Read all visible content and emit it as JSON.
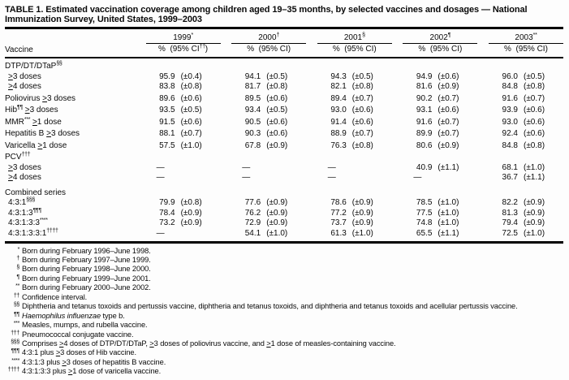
{
  "page": {
    "title_line1": "TABLE 1. Estimated vaccination coverage among children aged 19–35 months, by selected vaccines and dosages — National",
    "title_line2": "Immunization Survey, United States, 1999–2003"
  },
  "header": {
    "vaccine_label": "Vaccine",
    "pct_label": "%",
    "columns": [
      {
        "year": "1999",
        "year_sup": "*",
        "ci_pre": "(95% CI",
        "ci_sup": "††",
        "ci_close": ")"
      },
      {
        "year": "2000",
        "year_sup": "†",
        "ci_pre": "(95% CI",
        "ci_sup": "",
        "ci_close": ")"
      },
      {
        "year": "2001",
        "year_sup": "§",
        "ci_pre": "(95% CI",
        "ci_sup": "",
        "ci_close": ")"
      },
      {
        "year": "2002",
        "year_sup": "¶",
        "ci_pre": "(95% CI",
        "ci_sup": "",
        "ci_close": ")"
      },
      {
        "year": "2003",
        "year_sup": "**",
        "ci_pre": "(95% CI",
        "ci_sup": "",
        "ci_close": ")"
      }
    ]
  },
  "body": {
    "dash": "—",
    "rows": [
      {
        "type": "section",
        "pre": "DTP/DT/DTaP",
        "sup": "§§",
        "post": "",
        "gap": 0,
        "indent": false,
        "cells": null
      },
      {
        "type": "data",
        "pre": "≥3 doses",
        "sup": "",
        "post": "",
        "gap": 0,
        "indent": true,
        "cells": [
          [
            "95.9",
            "(±0.4)"
          ],
          [
            "94.1",
            "(±0.5)"
          ],
          [
            "94.3",
            "(±0.5)"
          ],
          [
            "94.9",
            "(±0.6)"
          ],
          [
            "96.0",
            "(±0.5)"
          ]
        ]
      },
      {
        "type": "data",
        "pre": "≥4 doses",
        "sup": "",
        "post": "",
        "gap": 0,
        "indent": true,
        "cells": [
          [
            "83.8",
            "(±0.8)"
          ],
          [
            "81.7",
            "(±0.8)"
          ],
          [
            "82.1",
            "(±0.8)"
          ],
          [
            "81.6",
            "(±0.9)"
          ],
          [
            "84.8",
            "(±0.8)"
          ]
        ]
      },
      {
        "type": "data",
        "pre": "Poliovirus ≥3 doses",
        "sup": "",
        "post": "",
        "gap": 1,
        "indent": false,
        "cells": [
          [
            "89.6",
            "(±0.6)"
          ],
          [
            "89.5",
            "(±0.6)"
          ],
          [
            "89.4",
            "(±0.7)"
          ],
          [
            "90.2",
            "(±0.7)"
          ],
          [
            "91.6",
            "(±0.7)"
          ]
        ]
      },
      {
        "type": "data",
        "pre": "Hib",
        "sup": "¶¶",
        "post": " ≥3 doses",
        "gap": 1,
        "indent": false,
        "cells": [
          [
            "93.5",
            "(±0.5)"
          ],
          [
            "93.4",
            "(±0.5)"
          ],
          [
            "93.0",
            "(±0.6)"
          ],
          [
            "93.1",
            "(±0.6)"
          ],
          [
            "93.9",
            "(±0.6)"
          ]
        ]
      },
      {
        "type": "data",
        "pre": "MMR",
        "sup": "***",
        "post": " ≥1 dose",
        "gap": 1,
        "indent": false,
        "cells": [
          [
            "91.5",
            "(±0.6)"
          ],
          [
            "90.5",
            "(±0.6)"
          ],
          [
            "91.4",
            "(±0.6)"
          ],
          [
            "91.6",
            "(±0.7)"
          ],
          [
            "93.0",
            "(±0.6)"
          ]
        ]
      },
      {
        "type": "data",
        "pre": "Hepatitis B ≥3 doses",
        "sup": "",
        "post": "",
        "gap": 1,
        "indent": false,
        "cells": [
          [
            "88.1",
            "(±0.7)"
          ],
          [
            "90.3",
            "(±0.6)"
          ],
          [
            "88.9",
            "(±0.7)"
          ],
          [
            "89.9",
            "(±0.7)"
          ],
          [
            "92.4",
            "(±0.6)"
          ]
        ]
      },
      {
        "type": "data",
        "pre": "Varicella ≥1 dose",
        "sup": "",
        "post": "",
        "gap": 1,
        "indent": false,
        "cells": [
          [
            "57.5",
            "(±1.0)"
          ],
          [
            "67.8",
            "(±0.9)"
          ],
          [
            "76.3",
            "(±0.8)"
          ],
          [
            "80.6",
            "(±0.9)"
          ],
          [
            "84.8",
            "(±0.8)"
          ]
        ]
      },
      {
        "type": "section",
        "pre": "PCV",
        "sup": "†††",
        "post": "",
        "gap": 1,
        "indent": false,
        "cells": null
      },
      {
        "type": "data",
        "pre": "≥3 doses",
        "sup": "",
        "post": "",
        "gap": 0,
        "indent": true,
        "cells": [
          null,
          null,
          null,
          [
            "40.9",
            "(±1.1)"
          ],
          [
            "68.1",
            "(±1.0)"
          ]
        ]
      },
      {
        "type": "data",
        "pre": "≥4 doses",
        "sup": "",
        "post": "",
        "gap": 0,
        "indent": true,
        "cells": [
          null,
          null,
          null,
          null,
          [
            "36.7",
            "(±1.1)"
          ]
        ]
      },
      {
        "type": "section",
        "pre": "Combined series",
        "sup": "",
        "post": "",
        "gap": 2,
        "indent": false,
        "cells": null
      },
      {
        "type": "data",
        "pre": "4:3:1",
        "sup": "§§§",
        "post": "",
        "gap": 0,
        "indent": true,
        "cells": [
          [
            "79.9",
            "(±0.8)"
          ],
          [
            "77.6",
            "(±0.9)"
          ],
          [
            "78.6",
            "(±0.9)"
          ],
          [
            "78.5",
            "(±1.0)"
          ],
          [
            "82.2",
            "(±0.9)"
          ]
        ]
      },
      {
        "type": "data",
        "pre": "4:3:1:3",
        "sup": "¶¶¶",
        "post": "",
        "gap": 0,
        "indent": true,
        "cells": [
          [
            "78.4",
            "(±0.9)"
          ],
          [
            "76.2",
            "(±0.9)"
          ],
          [
            "77.2",
            "(±0.9)"
          ],
          [
            "77.5",
            "(±1.0)"
          ],
          [
            "81.3",
            "(±0.9)"
          ]
        ]
      },
      {
        "type": "data",
        "pre": "4:3:1:3:3",
        "sup": "****",
        "post": "",
        "gap": 0,
        "indent": true,
        "cells": [
          [
            "73.2",
            "(±0.9)"
          ],
          [
            "72.9",
            "(±0.9)"
          ],
          [
            "73.7",
            "(±0.9)"
          ],
          [
            "74.8",
            "(±1.0)"
          ],
          [
            "79.4",
            "(±0.9)"
          ]
        ]
      },
      {
        "type": "data",
        "pre": "4:3:1:3:3:1",
        "sup": "††††",
        "post": "",
        "gap": 0,
        "indent": true,
        "cells": [
          null,
          [
            "54.1",
            "(±1.0)"
          ],
          [
            "61.3",
            "(±1.0)"
          ],
          [
            "65.5",
            "(±1.1)"
          ],
          [
            "72.5",
            "(±1.0)"
          ]
        ]
      }
    ]
  },
  "footnotes": [
    {
      "marker": "*",
      "text": "Born during February 1996–June 1998."
    },
    {
      "marker": "†",
      "text": "Born during February 1997–June 1999."
    },
    {
      "marker": "§",
      "text": "Born during February 1998–June 2000."
    },
    {
      "marker": "¶",
      "text": "Born during February 1999–June 2001."
    },
    {
      "marker": "**",
      "text": "Born during February 2000–June 2002."
    },
    {
      "marker": "††",
      "text": "Confidence interval."
    },
    {
      "marker": "§§",
      "text": "Diphtheria and tetanus toxoids and pertussis vaccine, diphtheria and tetanus toxoids, and diphtheria and tetanus toxoids and acellular pertussis vaccine."
    },
    {
      "marker": "¶¶",
      "italic": "Haemophilus influenzae",
      "text": " type b."
    },
    {
      "marker": "***",
      "text": "Measles, mumps, and rubella vaccine."
    },
    {
      "marker": "†††",
      "text": "Pneumococcal conjugate vaccine."
    },
    {
      "marker": "§§§",
      "text": "Comprises ≥4 doses of DTP/DT/DTaP, ≥3 doses of poliovirus vaccine, and ≥1 dose of measles-containing vaccine."
    },
    {
      "marker": "¶¶¶",
      "text": "4:3:1 plus ≥3 doses of Hib vaccine."
    },
    {
      "marker": "****",
      "text": "4:3:1:3 plus ≥3 doses of hepatitis B vaccine."
    },
    {
      "marker": "††††",
      "text": "4:3:1:3:3 plus ≥1 dose of varicella vaccine."
    }
  ]
}
